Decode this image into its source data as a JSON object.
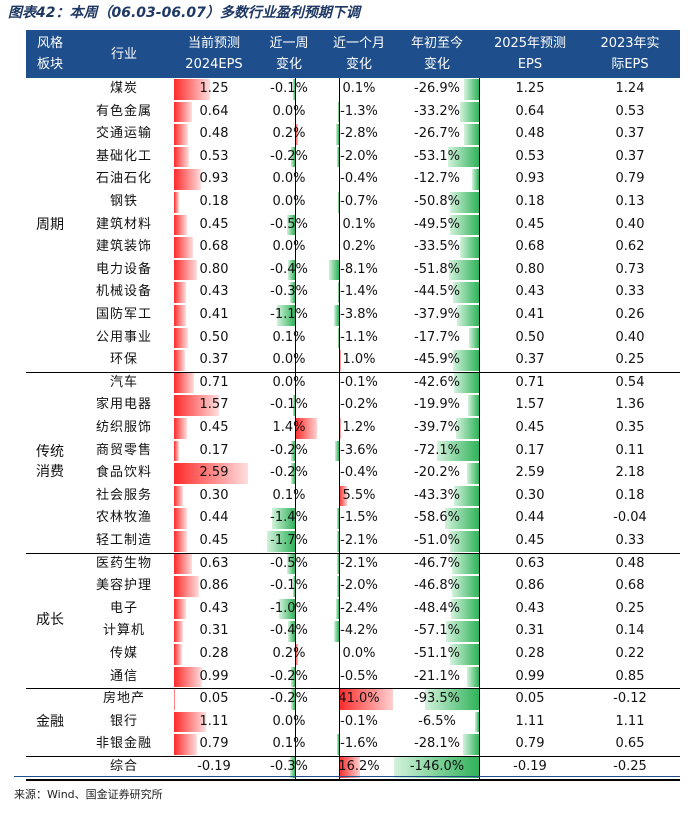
{
  "title": "图表42：本周（06.03-06.07）多数行业盈利预期下调",
  "source": "来源：Wind、国金证券研究所",
  "headers": {
    "style": [
      "风格",
      "板块"
    ],
    "industry": [
      "行业"
    ],
    "eps2024": [
      "当前预测",
      "2024EPS"
    ],
    "week": [
      "近一周",
      "变化"
    ],
    "month": [
      "近一个月",
      "变化"
    ],
    "ytd": [
      "年初至今",
      "变化"
    ],
    "eps2025": [
      "2025年预测",
      "EPS"
    ],
    "eps2023": [
      "2023年实",
      "际EPS"
    ]
  },
  "colors": {
    "header_bg": "#1f4e8c",
    "positive": "#ff2a2a",
    "negative": "#2fb35a"
  },
  "groups": [
    {
      "label": "周期",
      "start": 0,
      "count": 13
    },
    {
      "label": "传统\n消费",
      "start": 13,
      "count": 8
    },
    {
      "label": "成长",
      "start": 21,
      "count": 6
    },
    {
      "label": "金融",
      "start": 27,
      "count": 3
    },
    {
      "label": "",
      "start": 30,
      "count": 1
    }
  ],
  "rows": [
    {
      "industry": "煤炭",
      "eps2024": "1.25",
      "week": "-0.1%",
      "month": "0.1%",
      "ytd": "-26.9%",
      "eps2025": "1.25",
      "eps2023": "1.24",
      "e": 1.25,
      "w": -0.1,
      "m": 0.1,
      "y": -26.9
    },
    {
      "industry": "有色金属",
      "eps2024": "0.64",
      "week": "0.0%",
      "month": "-1.3%",
      "ytd": "-33.2%",
      "eps2025": "0.64",
      "eps2023": "0.53",
      "e": 0.64,
      "w": 0.0,
      "m": -1.3,
      "y": -33.2
    },
    {
      "industry": "交通运输",
      "eps2024": "0.48",
      "week": "0.2%",
      "month": "-2.8%",
      "ytd": "-26.7%",
      "eps2025": "0.48",
      "eps2023": "0.37",
      "e": 0.48,
      "w": 0.2,
      "m": -2.8,
      "y": -26.7
    },
    {
      "industry": "基础化工",
      "eps2024": "0.53",
      "week": "-0.2%",
      "month": "-2.0%",
      "ytd": "-53.1%",
      "eps2025": "0.53",
      "eps2023": "0.37",
      "e": 0.53,
      "w": -0.2,
      "m": -2.0,
      "y": -53.1
    },
    {
      "industry": "石油石化",
      "eps2024": "0.93",
      "week": "0.0%",
      "month": "-0.4%",
      "ytd": "-12.7%",
      "eps2025": "0.93",
      "eps2023": "0.79",
      "e": 0.93,
      "w": 0.0,
      "m": -0.4,
      "y": -12.7
    },
    {
      "industry": "钢铁",
      "eps2024": "0.18",
      "week": "0.0%",
      "month": "-0.7%",
      "ytd": "-50.8%",
      "eps2025": "0.18",
      "eps2023": "0.13",
      "e": 0.18,
      "w": 0.0,
      "m": -0.7,
      "y": -50.8
    },
    {
      "industry": "建筑材料",
      "eps2024": "0.45",
      "week": "-0.5%",
      "month": "0.1%",
      "ytd": "-49.5%",
      "eps2025": "0.45",
      "eps2023": "0.40",
      "e": 0.45,
      "w": -0.5,
      "m": 0.1,
      "y": -49.5
    },
    {
      "industry": "建筑装饰",
      "eps2024": "0.68",
      "week": "0.0%",
      "month": "0.2%",
      "ytd": "-33.5%",
      "eps2025": "0.68",
      "eps2023": "0.62",
      "e": 0.68,
      "w": 0.0,
      "m": 0.2,
      "y": -33.5
    },
    {
      "industry": "电力设备",
      "eps2024": "0.80",
      "week": "-0.4%",
      "month": "-8.1%",
      "ytd": "-51.8%",
      "eps2025": "0.80",
      "eps2023": "0.73",
      "e": 0.8,
      "w": -0.4,
      "m": -8.1,
      "y": -51.8
    },
    {
      "industry": "机械设备",
      "eps2024": "0.43",
      "week": "-0.3%",
      "month": "-1.4%",
      "ytd": "-44.5%",
      "eps2025": "0.43",
      "eps2023": "0.33",
      "e": 0.43,
      "w": -0.3,
      "m": -1.4,
      "y": -44.5
    },
    {
      "industry": "国防军工",
      "eps2024": "0.41",
      "week": "-1.1%",
      "month": "-3.8%",
      "ytd": "-37.9%",
      "eps2025": "0.41",
      "eps2023": "0.26",
      "e": 0.41,
      "w": -1.1,
      "m": -3.8,
      "y": -37.9
    },
    {
      "industry": "公用事业",
      "eps2024": "0.50",
      "week": "0.1%",
      "month": "-1.1%",
      "ytd": "-17.7%",
      "eps2025": "0.50",
      "eps2023": "0.40",
      "e": 0.5,
      "w": 0.1,
      "m": -1.1,
      "y": -17.7
    },
    {
      "industry": "环保",
      "eps2024": "0.37",
      "week": "0.0%",
      "month": "1.0%",
      "ytd": "-45.9%",
      "eps2025": "0.37",
      "eps2023": "0.25",
      "e": 0.37,
      "w": 0.0,
      "m": 1.0,
      "y": -45.9
    },
    {
      "industry": "汽车",
      "eps2024": "0.71",
      "week": "0.0%",
      "month": "-0.1%",
      "ytd": "-42.6%",
      "eps2025": "0.71",
      "eps2023": "0.54",
      "e": 0.71,
      "w": 0.0,
      "m": -0.1,
      "y": -42.6
    },
    {
      "industry": "家用电器",
      "eps2024": "1.57",
      "week": "-0.1%",
      "month": "-0.2%",
      "ytd": "-19.9%",
      "eps2025": "1.57",
      "eps2023": "1.36",
      "e": 1.57,
      "w": -0.1,
      "m": -0.2,
      "y": -19.9
    },
    {
      "industry": "纺织服饰",
      "eps2024": "0.45",
      "week": "1.4%",
      "month": "1.2%",
      "ytd": "-39.7%",
      "eps2025": "0.45",
      "eps2023": "0.35",
      "e": 0.45,
      "w": 1.4,
      "m": 1.2,
      "y": -39.7
    },
    {
      "industry": "商贸零售",
      "eps2024": "0.17",
      "week": "-0.2%",
      "month": "-3.6%",
      "ytd": "-72.1%",
      "eps2025": "0.17",
      "eps2023": "0.11",
      "e": 0.17,
      "w": -0.2,
      "m": -3.6,
      "y": -72.1
    },
    {
      "industry": "食品饮料",
      "eps2024": "2.59",
      "week": "-0.2%",
      "month": "-0.4%",
      "ytd": "-20.2%",
      "eps2025": "2.59",
      "eps2023": "2.18",
      "e": 2.59,
      "w": -0.2,
      "m": -0.4,
      "y": -20.2
    },
    {
      "industry": "社会服务",
      "eps2024": "0.30",
      "week": "0.1%",
      "month": "5.5%",
      "ytd": "-43.3%",
      "eps2025": "0.30",
      "eps2023": "0.18",
      "e": 0.3,
      "w": 0.1,
      "m": 5.5,
      "y": -43.3
    },
    {
      "industry": "农林牧渔",
      "eps2024": "0.44",
      "week": "-1.4%",
      "month": "-1.5%",
      "ytd": "-58.6%",
      "eps2025": "0.44",
      "eps2023": "-0.04",
      "e": 0.44,
      "w": -1.4,
      "m": -1.5,
      "y": -58.6
    },
    {
      "industry": "轻工制造",
      "eps2024": "0.45",
      "week": "-1.7%",
      "month": "-2.1%",
      "ytd": "-51.0%",
      "eps2025": "0.45",
      "eps2023": "0.33",
      "e": 0.45,
      "w": -1.7,
      "m": -2.1,
      "y": -51.0
    },
    {
      "industry": "医药生物",
      "eps2024": "0.63",
      "week": "-0.5%",
      "month": "-2.1%",
      "ytd": "-46.7%",
      "eps2025": "0.63",
      "eps2023": "0.48",
      "e": 0.63,
      "w": -0.5,
      "m": -2.1,
      "y": -46.7
    },
    {
      "industry": "美容护理",
      "eps2024": "0.86",
      "week": "-0.1%",
      "month": "-2.0%",
      "ytd": "-46.8%",
      "eps2025": "0.86",
      "eps2023": "0.68",
      "e": 0.86,
      "w": -0.1,
      "m": -2.0,
      "y": -46.8
    },
    {
      "industry": "电子",
      "eps2024": "0.43",
      "week": "-1.0%",
      "month": "-2.4%",
      "ytd": "-48.4%",
      "eps2025": "0.43",
      "eps2023": "0.25",
      "e": 0.43,
      "w": -1.0,
      "m": -2.4,
      "y": -48.4
    },
    {
      "industry": "计算机",
      "eps2024": "0.31",
      "week": "-0.4%",
      "month": "-4.2%",
      "ytd": "-57.1%",
      "eps2025": "0.31",
      "eps2023": "0.14",
      "e": 0.31,
      "w": -0.4,
      "m": -4.2,
      "y": -57.1
    },
    {
      "industry": "传媒",
      "eps2024": "0.28",
      "week": "0.2%",
      "month": "0.0%",
      "ytd": "-51.1%",
      "eps2025": "0.28",
      "eps2023": "0.22",
      "e": 0.28,
      "w": 0.2,
      "m": 0.0,
      "y": -51.1
    },
    {
      "industry": "通信",
      "eps2024": "0.99",
      "week": "-0.2%",
      "month": "-0.5%",
      "ytd": "-21.1%",
      "eps2025": "0.99",
      "eps2023": "0.85",
      "e": 0.99,
      "w": -0.2,
      "m": -0.5,
      "y": -21.1
    },
    {
      "industry": "房地产",
      "eps2024": "0.05",
      "week": "-0.2%",
      "month": "41.0%",
      "ytd": "-93.5%",
      "eps2025": "0.05",
      "eps2023": "-0.12",
      "e": 0.05,
      "w": -0.2,
      "m": 41.0,
      "y": -93.5
    },
    {
      "industry": "银行",
      "eps2024": "1.11",
      "week": "0.0%",
      "month": "-0.1%",
      "ytd": "-6.5%",
      "eps2025": "1.11",
      "eps2023": "1.11",
      "e": 1.11,
      "w": 0.0,
      "m": -0.1,
      "y": -6.5
    },
    {
      "industry": "非银金融",
      "eps2024": "0.79",
      "week": "0.1%",
      "month": "-1.6%",
      "ytd": "-28.1%",
      "eps2025": "0.79",
      "eps2023": "0.65",
      "e": 0.79,
      "w": 0.1,
      "m": -1.6,
      "y": -28.1
    },
    {
      "industry": "综合",
      "eps2024": "-0.19",
      "week": "-0.3%",
      "month": "16.2%",
      "ytd": "-146.0%",
      "eps2025": "-0.19",
      "eps2023": "-0.25",
      "e": -0.19,
      "w": -0.3,
      "m": 16.2,
      "y": -146.0
    }
  ]
}
